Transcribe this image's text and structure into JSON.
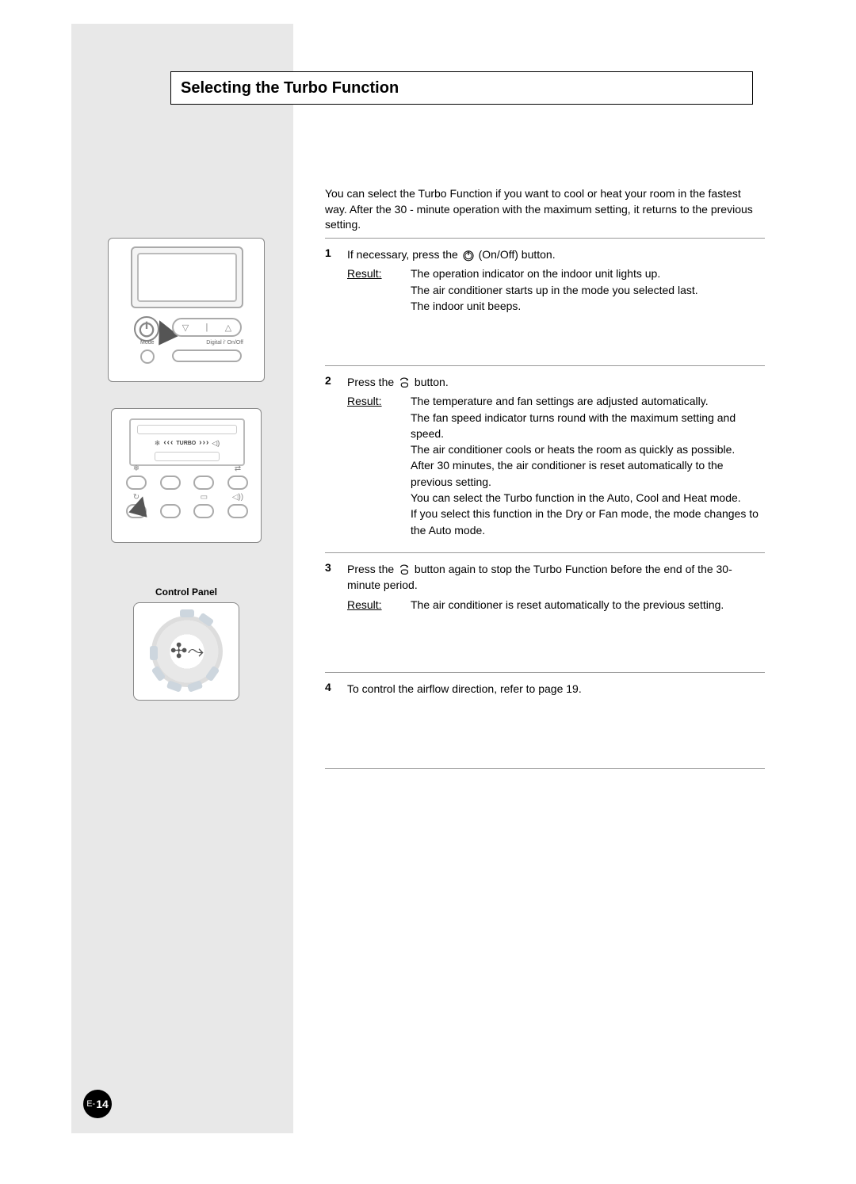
{
  "title": "Selecting the Turbo Function",
  "intro": "You can select the Turbo Function if you want to cool or heat your room in the fastest way.  After the 30 - minute operation with the maximum setting, it returns to the previous setting.",
  "steps": [
    {
      "num": "1",
      "text_before": "If necessary, press the ",
      "icon": "power",
      "text_after": " (On/Off) button.",
      "result_label": "Result:",
      "result": "The operation indicator on the indoor unit lights up.\nThe air conditioner starts up in the mode you selected last.\nThe indoor unit beeps.",
      "min_height": 160
    },
    {
      "num": "2",
      "text_before": "Press the ",
      "icon": "turbo",
      "text_after": " button.",
      "result_label": "Result:",
      "result": "The temperature and fan settings are adjusted automatically.\nThe fan speed indicator turns round with the maximum setting and speed.\nThe air conditioner cools or heats the room as quickly as possible.\nAfter 30 minutes, the air conditioner is reset automatically to the previous setting.\nYou can select the Turbo function in the Auto, Cool and Heat mode.\nIf you select this function in the Dry or Fan mode, the mode changes to the Auto mode.",
      "min_height": 0
    },
    {
      "num": "3",
      "text_before": "Press the ",
      "icon": "turbo",
      "text_after": " button again to stop the Turbo Function before the end of the 30-minute period.",
      "result_label": "Result:",
      "result": "The air conditioner is reset automatically to the previous setting.",
      "min_height": 150
    },
    {
      "num": "4",
      "text_before": "To control the airflow direction, refer to page 19.",
      "icon": null,
      "text_after": "",
      "result_label": "",
      "result": "",
      "min_height": 120
    }
  ],
  "control_panel_label": "Control Panel",
  "fig1": {
    "labels": {
      "mode": "Mode",
      "digital": "Digital i'  On/Off"
    },
    "pill_icons": [
      "▽",
      "|",
      "△"
    ]
  },
  "fig2": {
    "turbo_label": "TURBO",
    "row1_icons": [
      "❄",
      "",
      "",
      "⇄"
    ],
    "row2_icons": [
      "↻",
      "",
      "▭",
      "◁))"
    ]
  },
  "page_number_prefix": "E-",
  "page_number": "14",
  "colors": {
    "sidebar": "#e8e8e8",
    "border": "#888888",
    "text": "#000000",
    "marker": "#555555"
  }
}
